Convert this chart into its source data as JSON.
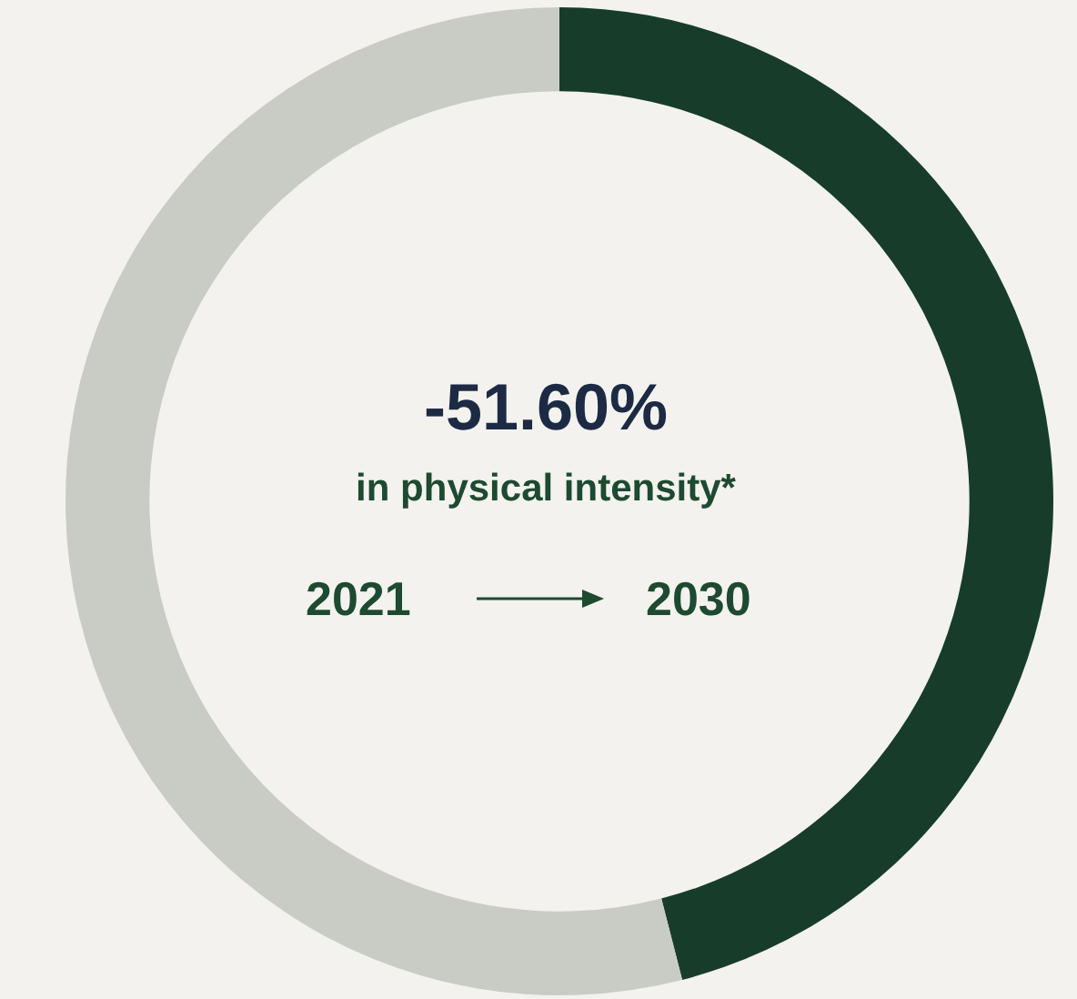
{
  "chart_data": {
    "type": "donut",
    "categories": [
      null,
      null
    ],
    "values": [
      46,
      54
    ],
    "colors": [
      "#173d2a",
      "#c9ccc5"
    ],
    "legend": false,
    "annotations": [
      "-51.60%",
      "in physical intensity*",
      "2021",
      "2030"
    ]
  }
}
